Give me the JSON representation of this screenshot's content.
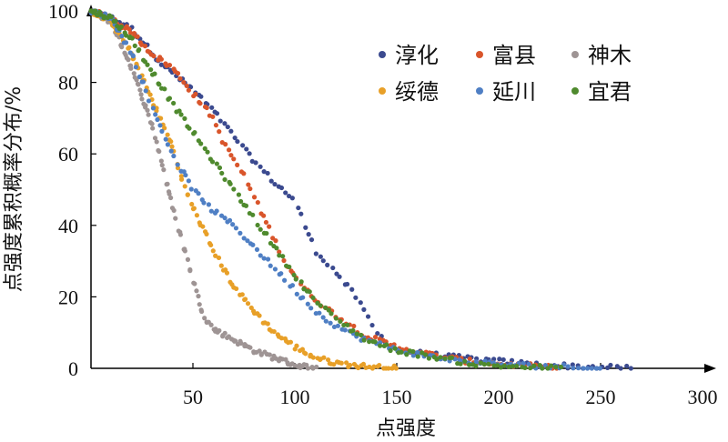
{
  "chart_data": {
    "type": "scatter",
    "title": "",
    "xlabel": "点强度",
    "ylabel": "点强度累积概率分布/%",
    "xlim": [
      0,
      300
    ],
    "ylim": [
      0,
      100
    ],
    "x_ticks": [
      {
        "value": 50,
        "label": "50"
      },
      {
        "value": 100,
        "label": "100"
      },
      {
        "value": 150,
        "label": "150"
      },
      {
        "value": 200,
        "label": "200"
      },
      {
        "value": 250,
        "label": "250"
      },
      {
        "value": 300,
        "label": "300"
      }
    ],
    "y_ticks": [
      {
        "value": 0,
        "label": "0"
      },
      {
        "value": 20,
        "label": "20"
      },
      {
        "value": 40,
        "label": "40"
      },
      {
        "value": 60,
        "label": "60"
      },
      {
        "value": 80,
        "label": "80"
      },
      {
        "value": 100,
        "label": "100"
      }
    ],
    "legend_position": "top-right",
    "series": [
      {
        "name": "淳化",
        "color": "#3b4a8f",
        "points": [
          [
            0,
            100
          ],
          [
            10,
            98
          ],
          [
            20,
            95
          ],
          [
            35,
            85
          ],
          [
            50,
            78
          ],
          [
            60,
            72
          ],
          [
            70,
            65
          ],
          [
            80,
            58
          ],
          [
            90,
            52
          ],
          [
            100,
            47
          ],
          [
            105,
            40
          ],
          [
            110,
            33
          ],
          [
            120,
            27
          ],
          [
            130,
            20
          ],
          [
            140,
            10
          ],
          [
            150,
            5
          ],
          [
            180,
            3
          ],
          [
            220,
            1
          ],
          [
            265,
            0
          ]
        ]
      },
      {
        "name": "富县",
        "color": "#d9552b",
        "points": [
          [
            0,
            100
          ],
          [
            10,
            98
          ],
          [
            20,
            94
          ],
          [
            30,
            88
          ],
          [
            40,
            84
          ],
          [
            50,
            77
          ],
          [
            60,
            70
          ],
          [
            65,
            63
          ],
          [
            75,
            54
          ],
          [
            85,
            42
          ],
          [
            95,
            30
          ],
          [
            105,
            22
          ],
          [
            115,
            17
          ],
          [
            125,
            13
          ],
          [
            135,
            9
          ],
          [
            150,
            6
          ],
          [
            165,
            4
          ],
          [
            185,
            2
          ],
          [
            230,
            0
          ]
        ]
      },
      {
        "name": "神木",
        "color": "#9e9494",
        "points": [
          [
            0,
            100
          ],
          [
            10,
            97
          ],
          [
            20,
            84
          ],
          [
            30,
            68
          ],
          [
            35,
            57
          ],
          [
            40,
            45
          ],
          [
            45,
            35
          ],
          [
            50,
            25
          ],
          [
            55,
            15
          ],
          [
            60,
            11
          ],
          [
            70,
            8
          ],
          [
            80,
            5
          ],
          [
            90,
            3
          ],
          [
            100,
            1
          ],
          [
            110,
            0
          ]
        ]
      },
      {
        "name": "绥德",
        "color": "#e8a028",
        "points": [
          [
            0,
            100
          ],
          [
            10,
            97
          ],
          [
            20,
            88
          ],
          [
            30,
            75
          ],
          [
            40,
            62
          ],
          [
            45,
            52
          ],
          [
            50,
            45
          ],
          [
            60,
            33
          ],
          [
            70,
            23
          ],
          [
            80,
            16
          ],
          [
            90,
            10
          ],
          [
            100,
            6
          ],
          [
            110,
            3
          ],
          [
            120,
            1.5
          ],
          [
            135,
            0.5
          ],
          [
            150,
            0
          ]
        ]
      },
      {
        "name": "延川",
        "color": "#4f7fc4",
        "points": [
          [
            0,
            100
          ],
          [
            10,
            98
          ],
          [
            20,
            88
          ],
          [
            30,
            73
          ],
          [
            40,
            60
          ],
          [
            50,
            50
          ],
          [
            60,
            44
          ],
          [
            70,
            40
          ],
          [
            80,
            34
          ],
          [
            90,
            28
          ],
          [
            100,
            22
          ],
          [
            110,
            16
          ],
          [
            120,
            12
          ],
          [
            130,
            9
          ],
          [
            145,
            6
          ],
          [
            160,
            4
          ],
          [
            180,
            2
          ],
          [
            205,
            1
          ],
          [
            250,
            0
          ]
        ]
      },
      {
        "name": "宜君",
        "color": "#4f8a2e",
        "points": [
          [
            0,
            100
          ],
          [
            10,
            98
          ],
          [
            20,
            92
          ],
          [
            30,
            83
          ],
          [
            40,
            74
          ],
          [
            50,
            66
          ],
          [
            60,
            58
          ],
          [
            70,
            50
          ],
          [
            80,
            42
          ],
          [
            90,
            34
          ],
          [
            100,
            26
          ],
          [
            110,
            19
          ],
          [
            120,
            14
          ],
          [
            135,
            8
          ],
          [
            150,
            5
          ],
          [
            170,
            3
          ],
          [
            190,
            1
          ],
          [
            230,
            0
          ]
        ]
      }
    ]
  }
}
